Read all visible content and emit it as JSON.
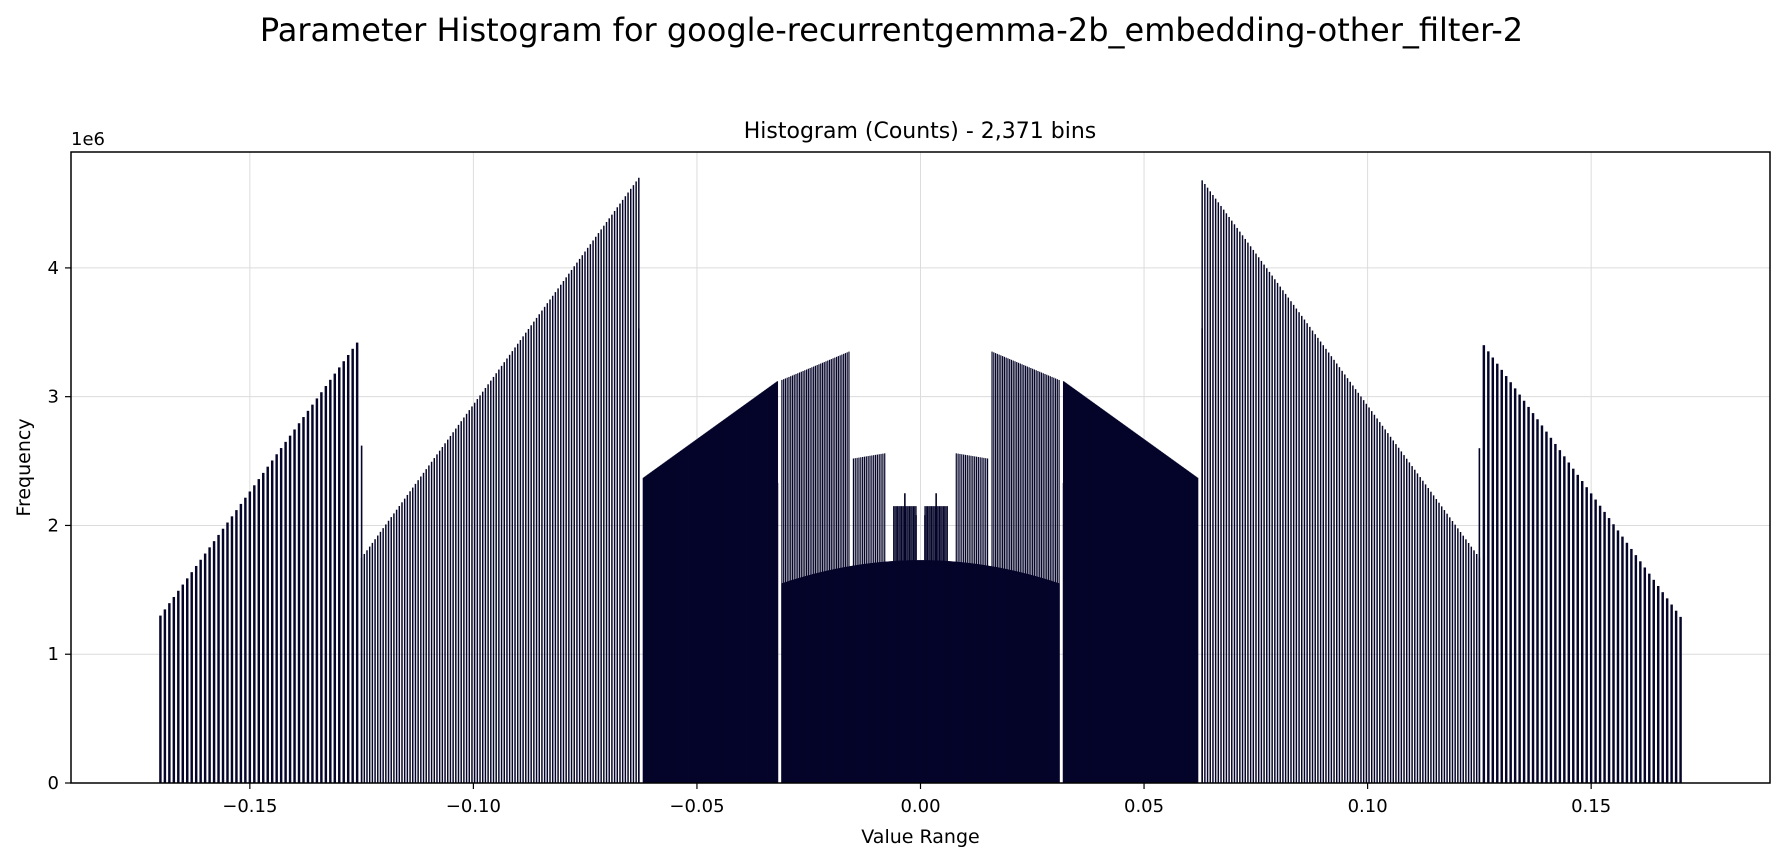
{
  "figure": {
    "title": "Parameter Histogram for google-recurrentgemma-2b_embedding-other_filter-2"
  },
  "chart_data": {
    "type": "bar",
    "title": "Histogram (Counts) - 2,371 bins",
    "xlabel": "Value Range",
    "ylabel": "Frequency",
    "y_scale_label": "1e6",
    "xlim": [
      -0.19,
      0.19
    ],
    "ylim": [
      0,
      4.9
    ],
    "y_unit": 1000000,
    "grid": true,
    "bar_color": "#05052a",
    "bin_count": 2371,
    "x_ticks": [
      {
        "value": -0.15,
        "label": "−0.15"
      },
      {
        "value": -0.1,
        "label": "−0.10"
      },
      {
        "value": -0.05,
        "label": "−0.05"
      },
      {
        "value": 0.0,
        "label": "0.00"
      },
      {
        "value": 0.05,
        "label": "0.05"
      },
      {
        "value": 0.1,
        "label": "0.10"
      },
      {
        "value": 0.15,
        "label": "0.15"
      }
    ],
    "y_ticks": [
      {
        "value": 0,
        "label": "0"
      },
      {
        "value": 1,
        "label": "1"
      },
      {
        "value": 2,
        "label": "2"
      },
      {
        "value": 3,
        "label": "3"
      },
      {
        "value": 4,
        "label": "4"
      }
    ],
    "segments": [
      {
        "x_start": -0.17,
        "x_end": -0.126,
        "y_start": 1.3,
        "y_end": 3.42,
        "step": 0.001
      },
      {
        "x_start": -0.125,
        "x_end": -0.063,
        "y_start": 1.75,
        "y_end": 4.7,
        "step": 0.0006
      },
      {
        "x_start": -0.062,
        "x_end": -0.032,
        "y_start": 2.37,
        "y_end": 3.12,
        "step": 0.00016
      },
      {
        "x_start": -0.031,
        "x_end": -0.016,
        "y_start": 3.13,
        "y_end": 3.35,
        "step": 0.0004
      },
      {
        "x_start": -0.015,
        "x_end": -0.008,
        "y_start": 2.52,
        "y_end": 2.56,
        "step": 0.0004
      },
      {
        "x_start": -0.006,
        "x_end": -0.001,
        "y_start": 2.15,
        "y_end": 2.15,
        "step": 0.0003
      },
      {
        "x_start": 0.001,
        "x_end": 0.006,
        "y_start": 2.15,
        "y_end": 2.15,
        "step": 0.0003
      },
      {
        "x_start": 0.008,
        "x_end": 0.015,
        "y_start": 2.56,
        "y_end": 2.52,
        "step": 0.0004
      },
      {
        "x_start": 0.016,
        "x_end": 0.031,
        "y_start": 3.35,
        "y_end": 3.13,
        "step": 0.0004
      },
      {
        "x_start": 0.032,
        "x_end": 0.062,
        "y_start": 3.12,
        "y_end": 2.37,
        "step": 0.00016
      },
      {
        "x_start": 0.063,
        "x_end": 0.125,
        "y_start": 4.68,
        "y_end": 1.75,
        "step": 0.0006
      },
      {
        "x_start": 0.126,
        "x_end": 0.17,
        "y_start": 3.4,
        "y_end": 1.29,
        "step": 0.001
      },
      {
        "x_start": -0.031,
        "x_end": 0.031,
        "y_start": 1.55,
        "y_end": 1.55,
        "y_peak": 1.73,
        "shape": "arc",
        "step": 0.00012
      }
    ],
    "spikes": [
      {
        "x": -0.063,
        "value": 3.53
      },
      {
        "x": 0.063,
        "value": 3.53
      },
      {
        "x": -0.125,
        "value": 2.62
      },
      {
        "x": 0.125,
        "value": 2.6
      },
      {
        "x": -0.032,
        "value": 2.33
      },
      {
        "x": 0.032,
        "value": 2.33
      },
      {
        "x": -0.0035,
        "value": 2.25
      },
      {
        "x": 0.0035,
        "value": 2.25
      },
      {
        "x": -0.001,
        "value": 2.08
      },
      {
        "x": 0.001,
        "value": 2.08
      }
    ]
  }
}
